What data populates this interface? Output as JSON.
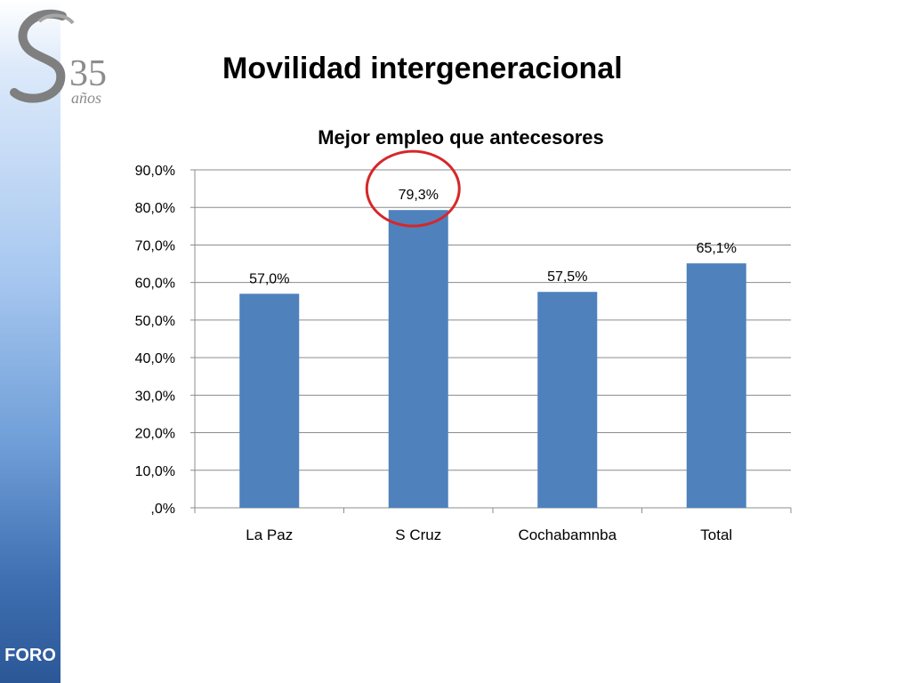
{
  "slide": {
    "title": "Movilidad intergeneracional",
    "sidebar_label": "FORO",
    "logo_text": "35 años"
  },
  "colors": {
    "bar": "#4f81bd",
    "highlight_circle": "#d62728",
    "sidebar_bottom": "#2b5797"
  },
  "chart_data": {
    "type": "bar",
    "title": "Mejor empleo que antecesores",
    "categories": [
      "La Paz",
      "S Cruz",
      "Cochabamnba",
      "Total"
    ],
    "values": [
      57.0,
      79.3,
      57.5,
      65.1
    ],
    "data_labels": [
      "57,0%",
      "79,3%",
      "57,5%",
      "65,1%"
    ],
    "ylim": [
      0,
      90
    ],
    "yticks": [
      ",0%",
      "10,0%",
      "20,0%",
      "30,0%",
      "40,0%",
      "50,0%",
      "60,0%",
      "70,0%",
      "80,0%",
      "90,0%"
    ],
    "grid": true,
    "legend": "none",
    "highlighted_category": "S Cruz"
  }
}
